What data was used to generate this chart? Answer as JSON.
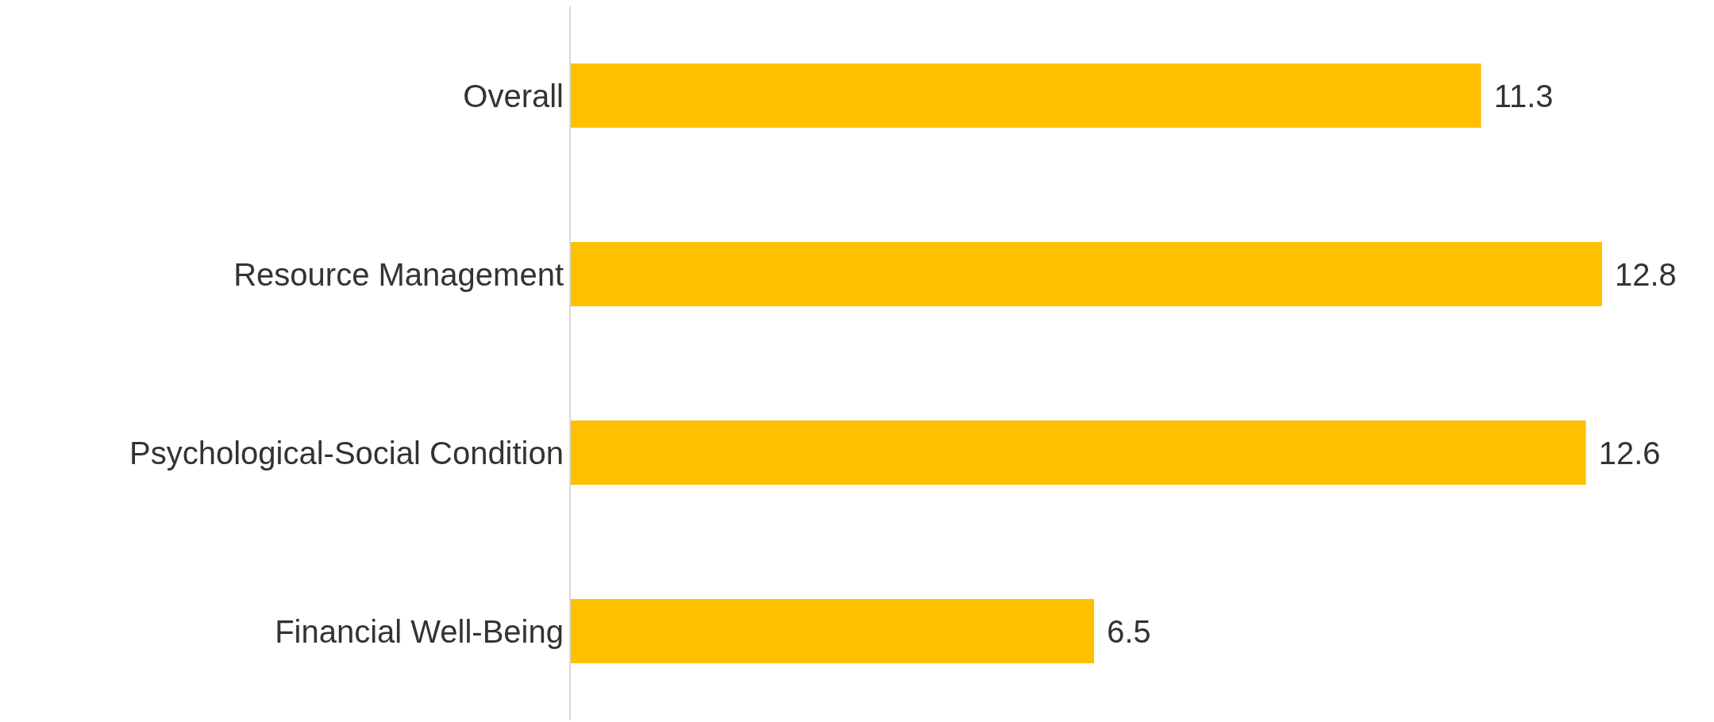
{
  "chart_data": {
    "type": "bar",
    "orientation": "horizontal",
    "categories": [
      "Overall",
      "Resource Management",
      "Psychological-Social Condition",
      "Financial Well-Being"
    ],
    "values": [
      11.3,
      12.8,
      12.6,
      6.5
    ],
    "color": "#ffc000",
    "data_labels": true,
    "grid": false,
    "legend": false
  }
}
